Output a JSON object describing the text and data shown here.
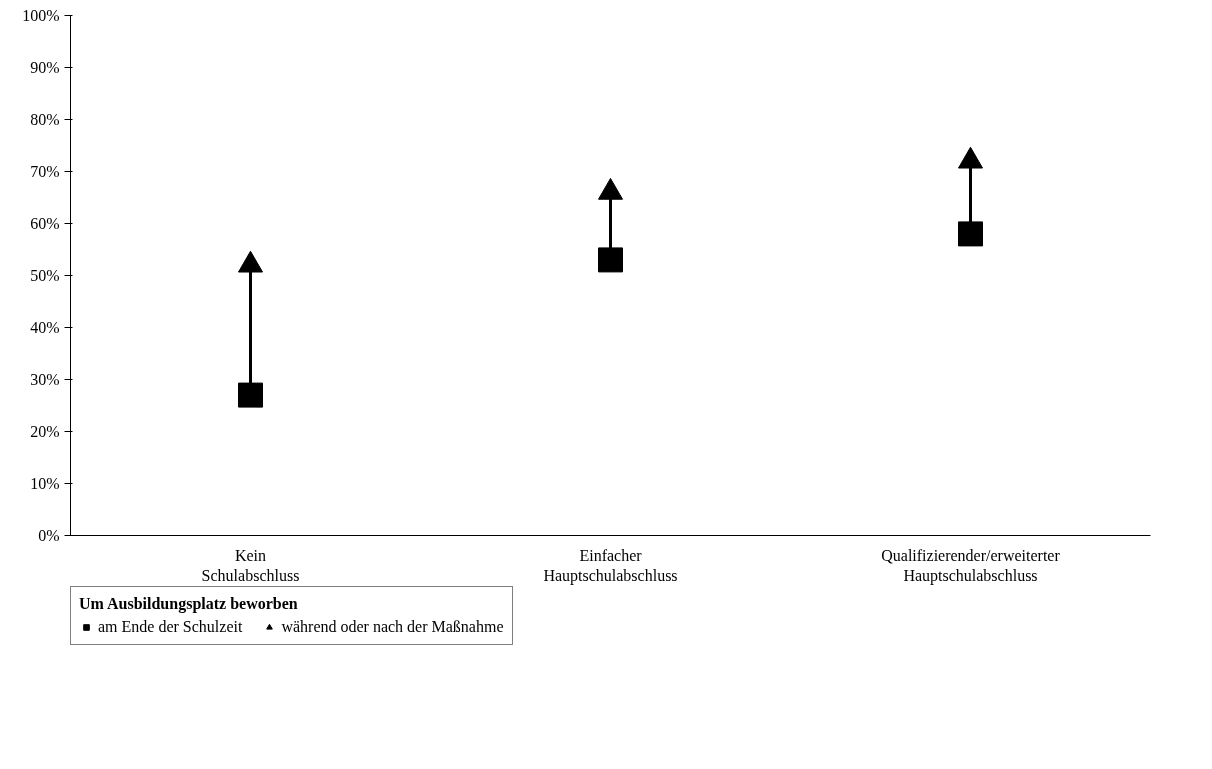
{
  "chart_data": {
    "type": "scatter",
    "categories": [
      "Kein Schulabschluss",
      "Einfacher Hauptschulabschluss",
      "Qualifizierender/erweiterter Hauptschulabschluss"
    ],
    "series": [
      {
        "name": "am Ende der Schulzeit",
        "color": "#000000",
        "marker": "square",
        "values": [
          27,
          53,
          58
        ]
      },
      {
        "name": "während oder nach der Maßnahme",
        "color": "#000000",
        "marker": "triangle",
        "values": [
          52,
          66,
          72
        ]
      }
    ],
    "legend_title": "Um Ausbildungsplatz beworben",
    "legend": "bottom",
    "grid": false,
    "ylim": [
      0,
      100
    ],
    "yticks": [
      {
        "value": 0,
        "label": "0%"
      },
      {
        "value": 10,
        "label": "10%"
      },
      {
        "value": 20,
        "label": "20%"
      },
      {
        "value": 30,
        "label": "30%"
      },
      {
        "value": 40,
        "label": "40%"
      },
      {
        "value": 50,
        "label": "50%"
      },
      {
        "value": 60,
        "label": "60%"
      },
      {
        "value": 70,
        "label": "70%"
      },
      {
        "value": 80,
        "label": "80%"
      },
      {
        "value": 90,
        "label": "90%"
      },
      {
        "value": 100,
        "label": "100%"
      }
    ]
  }
}
